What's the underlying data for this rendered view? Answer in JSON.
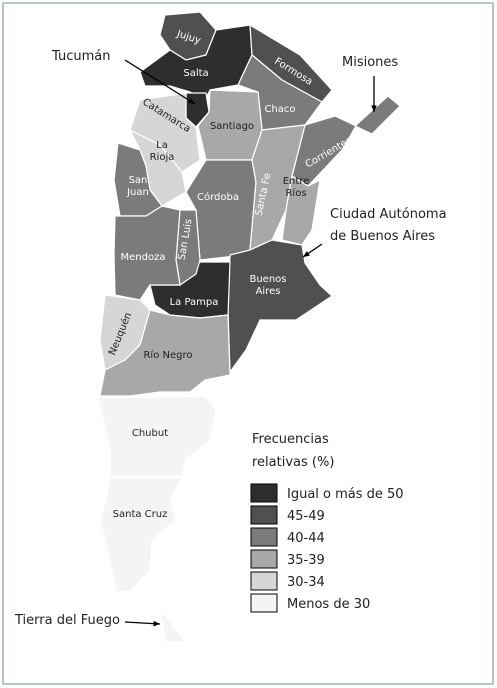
{
  "legend": {
    "title": [
      "Frecuencias",
      "relativas (%)"
    ],
    "items": [
      {
        "label": "Igual o más de 50",
        "color": "#2e2e2e"
      },
      {
        "label": "45-49",
        "color": "#505050"
      },
      {
        "label": "40-44",
        "color": "#7b7b7b"
      },
      {
        "label": "35-39",
        "color": "#a8a8a8"
      },
      {
        "label": "30-34",
        "color": "#d6d6d6"
      },
      {
        "label": "Menos de 30",
        "color": "#f4f4f4"
      }
    ]
  },
  "regions": [
    {
      "name": [
        "Jujuy"
      ],
      "color": "#505050"
    },
    {
      "name": [
        "Salta"
      ],
      "color": "#2e2e2e"
    },
    {
      "name": [
        "Formosa"
      ],
      "color": "#505050"
    },
    {
      "name": [
        "Chaco"
      ],
      "color": "#7b7b7b"
    },
    {
      "name": [
        "Misiones"
      ],
      "color": "#7b7b7b"
    },
    {
      "name": [
        "Corrientes"
      ],
      "color": "#7b7b7b"
    },
    {
      "name": [
        "Tucumán"
      ],
      "color": "#2e2e2e"
    },
    {
      "name": [
        "Santiago"
      ],
      "color": "#a8a8a8"
    },
    {
      "name": [
        "Catamarca"
      ],
      "color": "#d6d6d6"
    },
    {
      "name": [
        "La",
        "Rioja"
      ],
      "color": "#d6d6d6"
    },
    {
      "name": [
        "San",
        "Juan"
      ],
      "color": "#7b7b7b"
    },
    {
      "name": [
        "Córdoba"
      ],
      "color": "#7b7b7b"
    },
    {
      "name": [
        "Santa Fe"
      ],
      "color": "#a8a8a8"
    },
    {
      "name": [
        "Entre",
        "Ríos"
      ],
      "color": "#a8a8a8"
    },
    {
      "name": [
        "Ciudad Autónoma",
        "de Buenos Aires"
      ],
      "color": "#f4f4f4"
    },
    {
      "name": [
        "Buenos",
        "Aires"
      ],
      "color": "#505050"
    },
    {
      "name": [
        "La Pampa"
      ],
      "color": "#2e2e2e"
    },
    {
      "name": [
        "San Luis"
      ],
      "color": "#7b7b7b"
    },
    {
      "name": [
        "Mendoza"
      ],
      "color": "#7b7b7b"
    },
    {
      "name": [
        "Neuquén"
      ],
      "color": "#d6d6d6"
    },
    {
      "name": [
        "Río Negro"
      ],
      "color": "#a8a8a8"
    },
    {
      "name": [
        "Chubut"
      ],
      "color": "#f4f4f4"
    },
    {
      "name": [
        "Santa Cruz"
      ],
      "color": "#f4f4f4"
    },
    {
      "name": [
        "Tierra del Fuego"
      ],
      "color": "#f4f4f4"
    }
  ]
}
